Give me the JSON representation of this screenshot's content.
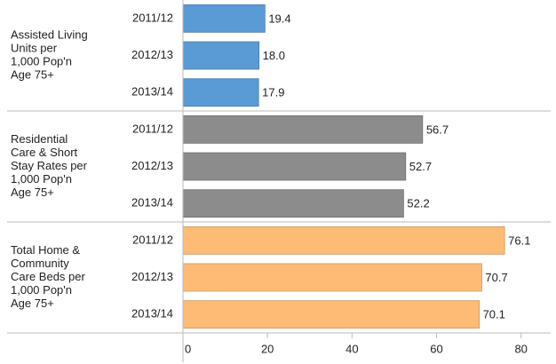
{
  "chart_data": {
    "type": "bar",
    "orientation": "horizontal",
    "xlim": [
      0,
      87
    ],
    "xticks": [
      0,
      20,
      40,
      60,
      80
    ],
    "panels": [
      {
        "label": [
          "Assisted Living",
          "Units per",
          "1,000 Pop'n",
          "Age 75+"
        ],
        "color": "#5b9bd5",
        "categories": [
          "2011/12",
          "2012/13",
          "2013/14"
        ],
        "values": [
          19.4,
          18.0,
          17.9
        ],
        "value_labels": [
          "19.4",
          "18.0",
          "17.9"
        ]
      },
      {
        "label": [
          "Residential",
          "Care & Short",
          "Stay Rates per",
          "1,000 Pop'n",
          "Age 75+"
        ],
        "color": "#8c8c8c",
        "categories": [
          "2011/12",
          "2012/13",
          "2013/14"
        ],
        "values": [
          56.7,
          52.7,
          52.2
        ],
        "value_labels": [
          "56.7",
          "52.7",
          "52.2"
        ]
      },
      {
        "label": [
          "Total Home &",
          "Community",
          "Care Beds per",
          "1,000 Pop'n",
          "Age 75+"
        ],
        "color": "#fdbb75",
        "categories": [
          "2011/12",
          "2012/13",
          "2013/14"
        ],
        "values": [
          76.1,
          70.7,
          70.1
        ],
        "value_labels": [
          "76.1",
          "70.7",
          "70.1"
        ]
      }
    ]
  }
}
